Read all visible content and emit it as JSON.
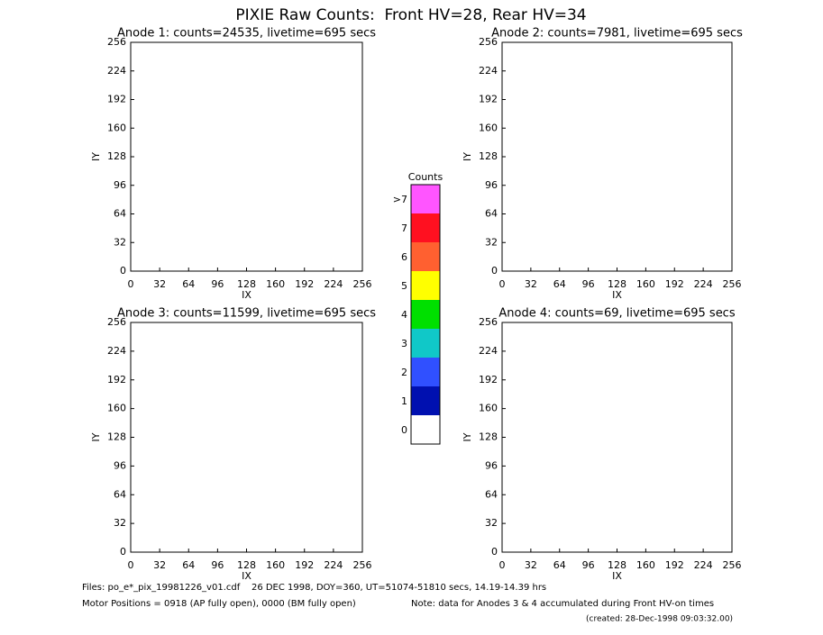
{
  "title": "PIXIE Raw Counts:  Front HV=28, Rear HV=34",
  "chart_data": [
    {
      "type": "heatmap",
      "title": "Anode 1: counts=24535, livetime=695 secs",
      "xlabel": "IX",
      "ylabel": "IY",
      "xlim": [
        0,
        256
      ],
      "ylim": [
        0,
        256
      ],
      "xticks": [
        0,
        32,
        64,
        96,
        128,
        160,
        192,
        224,
        256
      ],
      "yticks": [
        0,
        32,
        64,
        96,
        128,
        160,
        192,
        224,
        256
      ]
    },
    {
      "type": "heatmap",
      "title": "Anode 2: counts=7981, livetime=695 secs",
      "xlabel": "IX",
      "ylabel": "IY",
      "xlim": [
        0,
        256
      ],
      "ylim": [
        0,
        256
      ],
      "xticks": [
        0,
        32,
        64,
        96,
        128,
        160,
        192,
        224,
        256
      ],
      "yticks": [
        0,
        32,
        64,
        96,
        128,
        160,
        192,
        224,
        256
      ]
    },
    {
      "type": "heatmap",
      "title": "Anode 3: counts=11599, livetime=695 secs",
      "xlabel": "IX",
      "ylabel": "IY",
      "xlim": [
        0,
        256
      ],
      "ylim": [
        0,
        256
      ],
      "xticks": [
        0,
        32,
        64,
        96,
        128,
        160,
        192,
        224,
        256
      ],
      "yticks": [
        0,
        32,
        64,
        96,
        128,
        160,
        192,
        224,
        256
      ]
    },
    {
      "type": "heatmap",
      "title": "Anode 4: counts=69, livetime=695 secs",
      "xlabel": "IX",
      "ylabel": "IY",
      "xlim": [
        0,
        256
      ],
      "ylim": [
        0,
        256
      ],
      "xticks": [
        0,
        32,
        64,
        96,
        128,
        160,
        192,
        224,
        256
      ],
      "yticks": [
        0,
        32,
        64,
        96,
        128,
        160,
        192,
        224,
        256
      ]
    }
  ],
  "colorbar": {
    "title": "Counts",
    "categories": [
      "0",
      "1",
      "2",
      "3",
      "4",
      "5",
      "6",
      "7",
      ">7"
    ],
    "colors": [
      "#ffffff",
      "#0010b0",
      "#3050ff",
      "#10c8c8",
      "#00e000",
      "#ffff00",
      "#ff6030",
      "#ff1020",
      "#ff55ff"
    ]
  },
  "notes": [
    "Files: po_e*_pix_19981226_v01.cdf    26 DEC 1998, DOY=360, UT=51074-51810 secs, 14.19-14.39 hrs",
    "Motor Positions = 0918 (AP fully open), 0000 (BM fully open)",
    "Note: data for Anodes 3 & 4 accumulated during Front HV-on times",
    "(created: 28-Dec-1998 09:03:32.00)"
  ]
}
